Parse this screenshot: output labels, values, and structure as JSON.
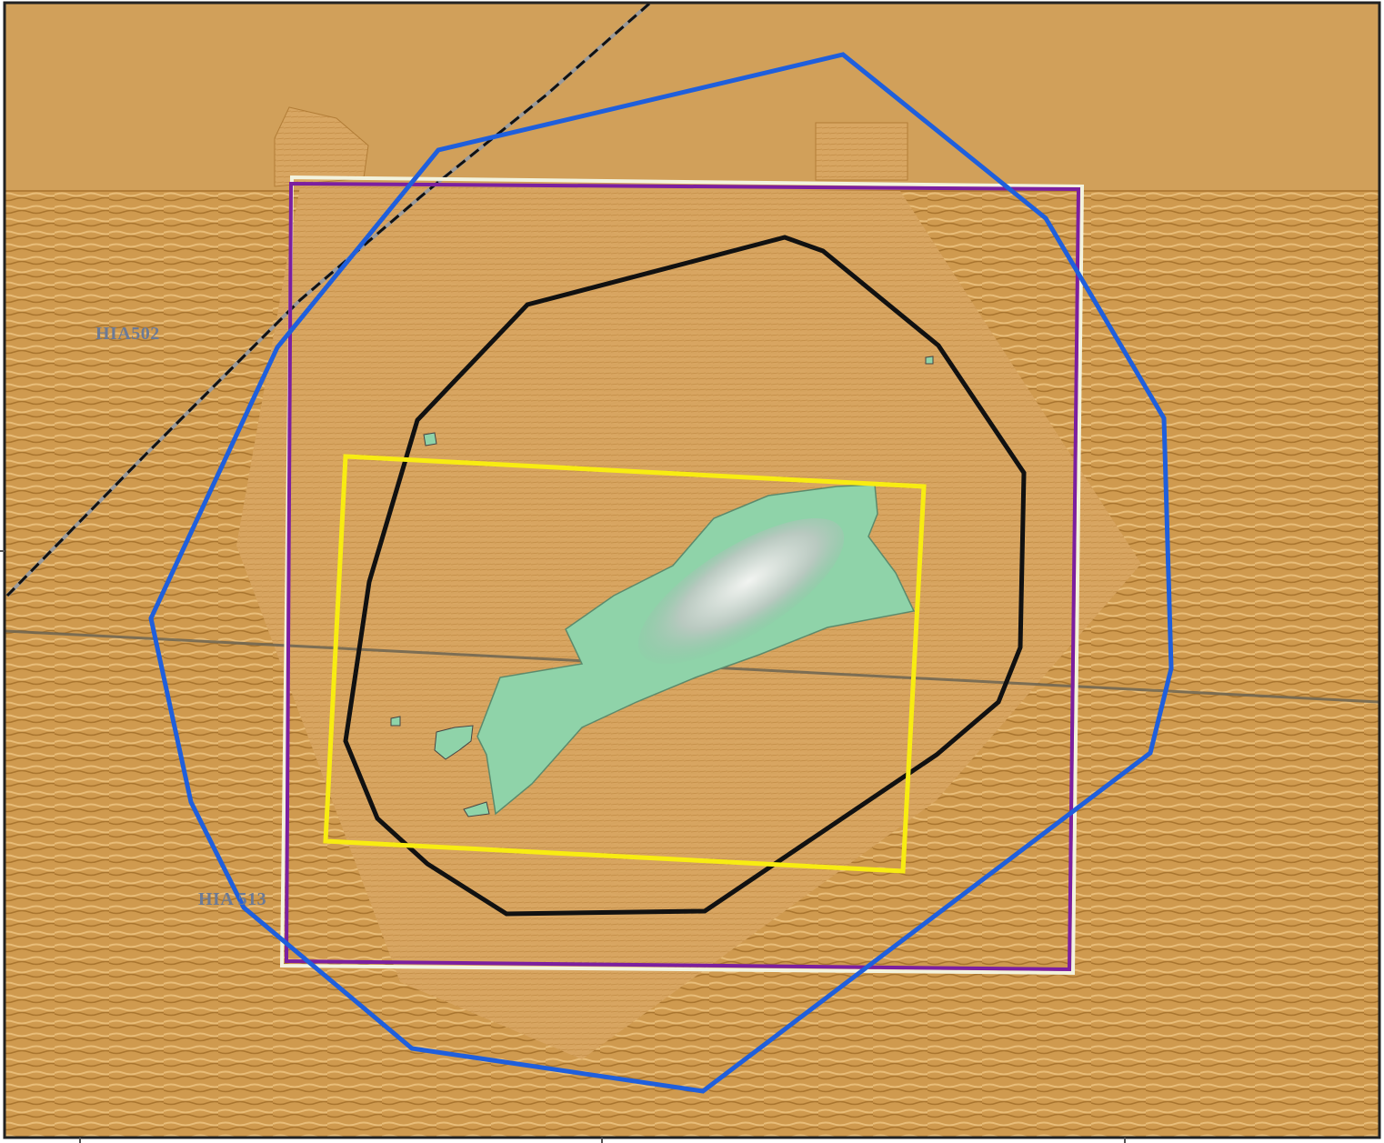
{
  "map": {
    "labels": [
      {
        "id": "hia502",
        "text": "HIA502"
      },
      {
        "id": "hia513",
        "text": "HIA 513"
      }
    ],
    "colors": {
      "seabed": "#cf9a4f",
      "seabed_dark": "#b27d37",
      "upper_area": "#d1a05a",
      "shoal_fill": "#8fd3a9",
      "blue_boundary": "#1f5fdc",
      "black_boundary": "#111111",
      "purple_boundary": "#7b1fa0",
      "white_boundary": "#f3f3de",
      "yellow_boundary": "#f8ec12",
      "cable_line": "#1a1a1a",
      "grey_line": "#6d6552",
      "label_text": "#6b7a96"
    }
  }
}
